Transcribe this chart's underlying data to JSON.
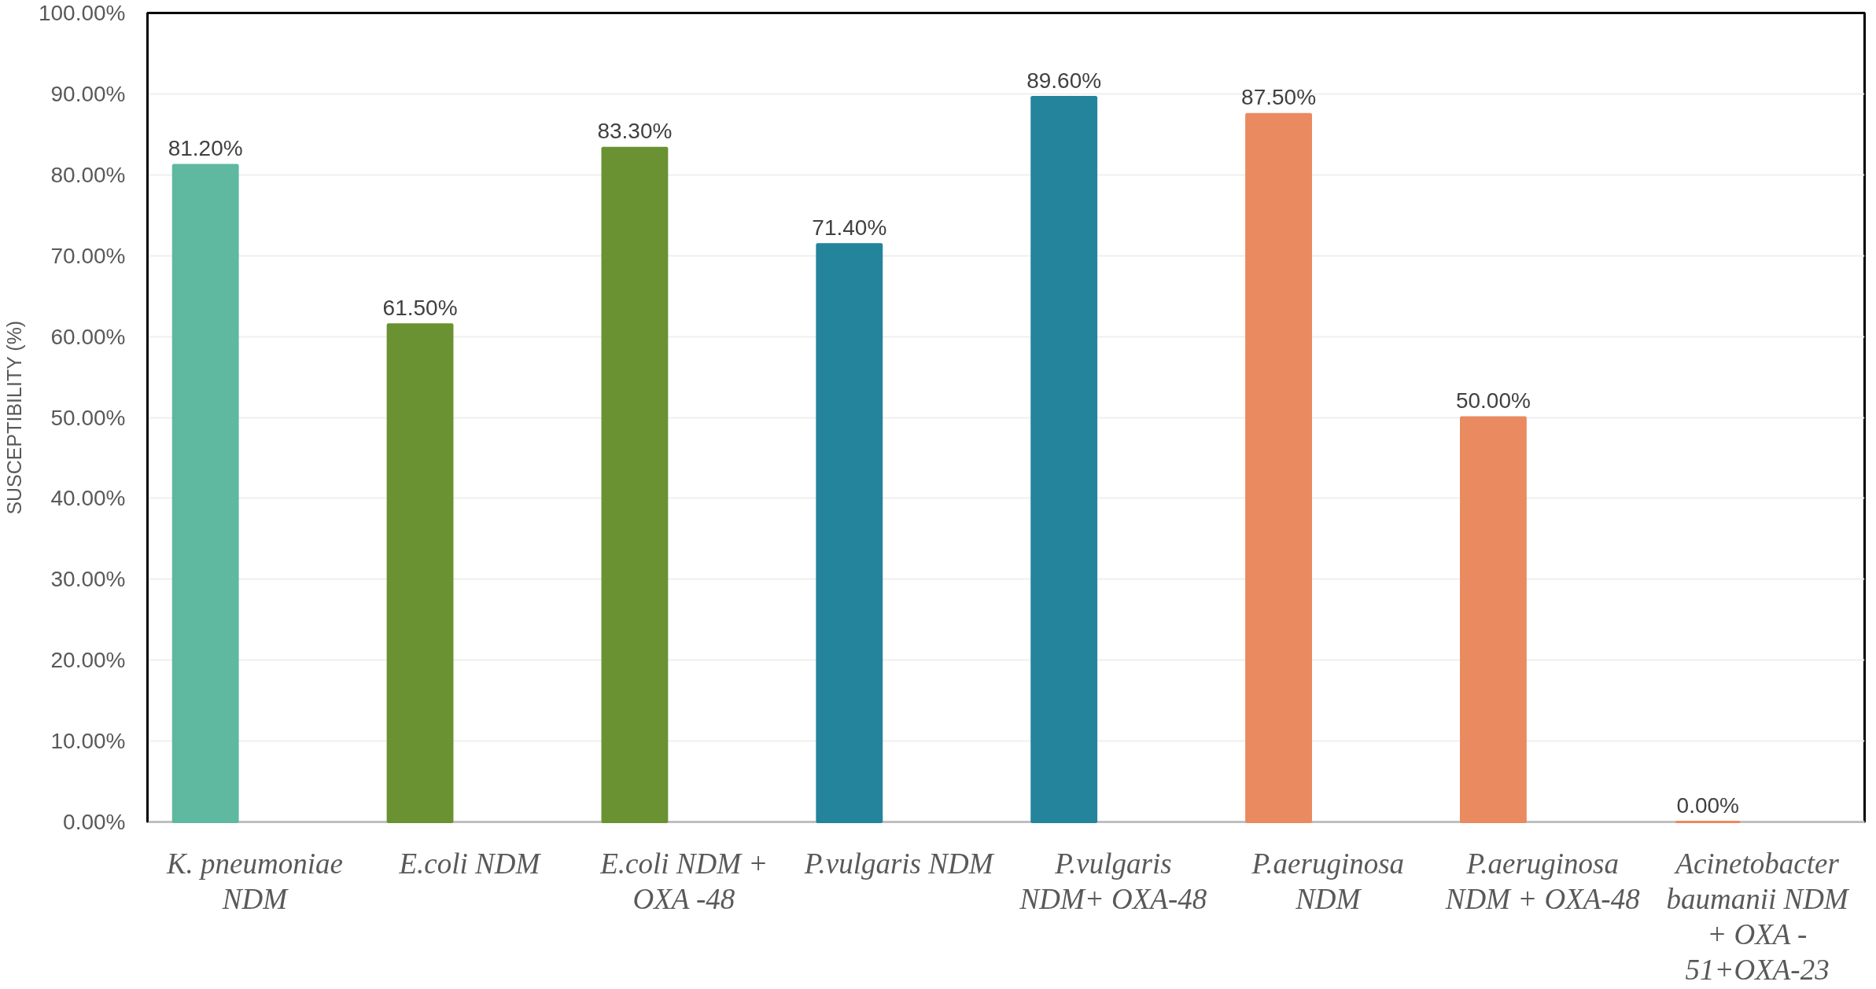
{
  "chart_data": {
    "type": "bar",
    "ylabel": "SUSCEPTIBILITY (%)",
    "categories": [
      "K. pneumoniae\nNDM",
      "E.coli NDM",
      "E.coli NDM +\nOXA -48",
      "P.vulgaris NDM",
      "P.vulgaris\nNDM+ OXA-48",
      "P.aeruginosa\nNDM",
      "P.aeruginosa\nNDM + OXA-48",
      "Acinetobacter\nbaumanii NDM\n+ OXA -\n51+OXA-23"
    ],
    "values": [
      81.2,
      61.5,
      83.3,
      71.4,
      89.6,
      87.5,
      50.0,
      0.0
    ],
    "value_labels": [
      "81.20%",
      "61.50%",
      "83.30%",
      "71.40%",
      "89.60%",
      "87.50%",
      "50.00%",
      "0.00%"
    ],
    "colors": [
      "#5fb8a0",
      "#6a9232",
      "#6a9232",
      "#24849b",
      "#24849b",
      "#ea8a60",
      "#ea8a60",
      "#ea8a60"
    ],
    "ylim": [
      0,
      100
    ],
    "yticks": [
      {
        "value": 0,
        "label": "0.00%"
      },
      {
        "value": 10,
        "label": "10.00%"
      },
      {
        "value": 20,
        "label": "20.00%"
      },
      {
        "value": 30,
        "label": "30.00%"
      },
      {
        "value": 40,
        "label": "40.00%"
      },
      {
        "value": 50,
        "label": "50.00%"
      },
      {
        "value": 60,
        "label": "60.00%"
      },
      {
        "value": 70,
        "label": "70.00%"
      },
      {
        "value": 80,
        "label": "80.00%"
      },
      {
        "value": 90,
        "label": "90.00%"
      },
      {
        "value": 100,
        "label": "100.00%"
      }
    ],
    "grid": "y"
  }
}
